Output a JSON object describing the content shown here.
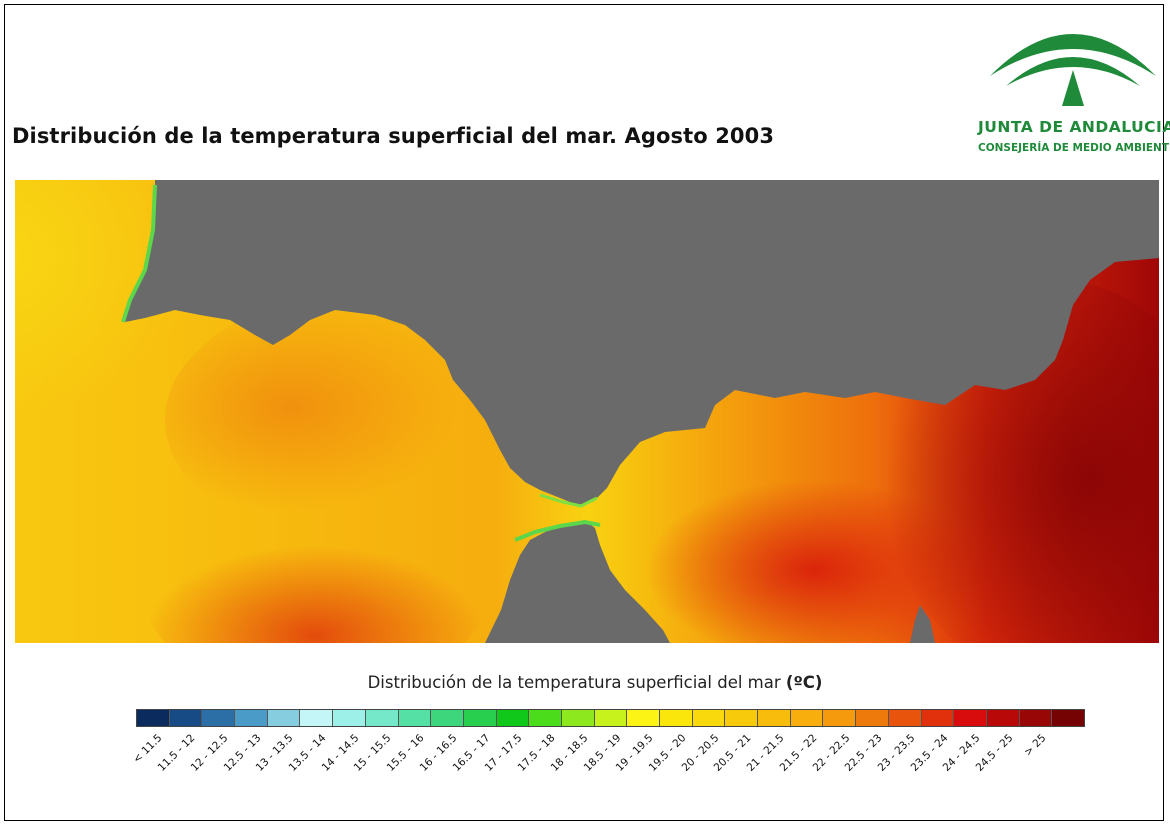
{
  "title": "Distribución de la temperatura superficial del mar. Agosto 2003",
  "logo": {
    "name": "JUNTA DE ANDALUCIA",
    "subtitle": "CONSEJERÍA DE MEDIO AMBIENTE",
    "color": "#1f8a3a"
  },
  "map": {
    "land_color": "#6a6a6a",
    "description_colors": {
      "cool_edge": "#5cd64a",
      "yellow": "#f8cf16",
      "orange": "#f59a12",
      "red": "#dd1b0b",
      "dark_red": "#8e0505"
    }
  },
  "legend": {
    "title_text": "Distribución de la temperatura superficial del mar",
    "unit": "(ºC)",
    "classes": [
      {
        "label": "< 11.5",
        "color": "#0b2a5e"
      },
      {
        "label": "11.5 - 12",
        "color": "#164b86"
      },
      {
        "label": "12 - 12.5",
        "color": "#2b6fa6"
      },
      {
        "label": "12.5 - 13",
        "color": "#4b9bc8"
      },
      {
        "label": "13 - 13.5",
        "color": "#87cde0"
      },
      {
        "label": "13.5 - 14",
        "color": "#c4f6f8"
      },
      {
        "label": "14 - 14.5",
        "color": "#9cf0e8"
      },
      {
        "label": "15 - 15.5",
        "color": "#74e8c8"
      },
      {
        "label": "15.5 - 16",
        "color": "#55e0a6"
      },
      {
        "label": "16 - 16.5",
        "color": "#3ed67c"
      },
      {
        "label": "16.5 - 17",
        "color": "#28cf4e"
      },
      {
        "label": "17 - 17.5",
        "color": "#10c81a"
      },
      {
        "label": "17.5 - 18",
        "color": "#4bdc1c"
      },
      {
        "label": "18 - 18.5",
        "color": "#8ee81e"
      },
      {
        "label": "18.5 - 19",
        "color": "#c8f21c"
      },
      {
        "label": "19 - 19.5",
        "color": "#fbf414"
      },
      {
        "label": "19.5 - 20",
        "color": "#fbe60c"
      },
      {
        "label": "20 - 20.5",
        "color": "#f9d80c"
      },
      {
        "label": "20.5 - 21",
        "color": "#f8ca0c"
      },
      {
        "label": "21 - 21.5",
        "color": "#f8bc0c"
      },
      {
        "label": "21.5 - 22",
        "color": "#f8ae0c"
      },
      {
        "label": "22 - 22.5",
        "color": "#f59a0c"
      },
      {
        "label": "22.5 - 23",
        "color": "#ef7a0c"
      },
      {
        "label": "23 - 23.5",
        "color": "#e8540c"
      },
      {
        "label": "23.5 - 24",
        "color": "#e0300c"
      },
      {
        "label": "24 - 24.5",
        "color": "#d80c0c"
      },
      {
        "label": "24.5 - 25",
        "color": "#b80808"
      },
      {
        "label": "> 25",
        "color": "#980606"
      },
      {
        "label": "",
        "color": "#760303"
      }
    ]
  }
}
